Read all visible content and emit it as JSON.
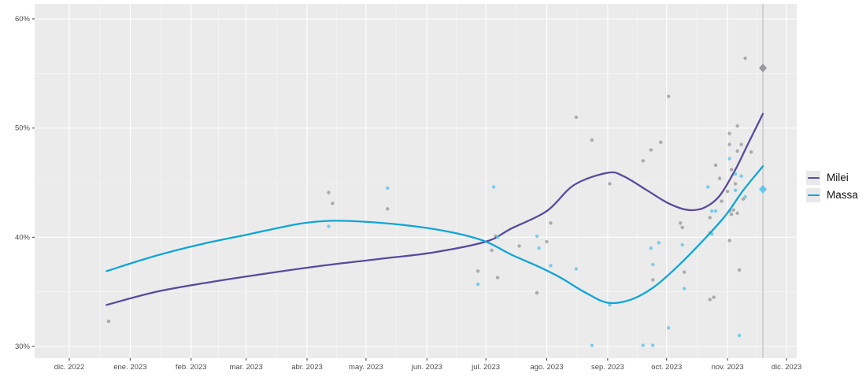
{
  "chart_data": {
    "type": "scatter",
    "title": "",
    "description": "Smoothed polling trend lines with individual poll points for Milei and Massa, with vertical line and diamond markers at the Nov 19 2023 runoff",
    "x_axis": {
      "tick_labels": [
        "dic. 2022",
        "ene. 2023",
        "feb. 2023",
        "mar. 2023",
        "abr. 2023",
        "may. 2023",
        "jun. 2023",
        "jul. 2023",
        "ago. 2023",
        "sep. 2023",
        "oct. 2023",
        "nov. 2023",
        "dic. 2023"
      ],
      "tick_dates": [
        "2022-12-01",
        "2023-01-01",
        "2023-02-01",
        "2023-03-01",
        "2023-04-01",
        "2023-05-01",
        "2023-06-01",
        "2023-07-01",
        "2023-08-01",
        "2023-09-01",
        "2023-10-01",
        "2023-11-01",
        "2023-12-01"
      ]
    },
    "y_axis": {
      "tick_labels": [
        "30%",
        "40%",
        "50%",
        "60%"
      ],
      "ticks": [
        30,
        40,
        50,
        60
      ],
      "minor_ticks": [
        35,
        45,
        55
      ],
      "range": [
        28.9,
        61.4
      ]
    },
    "x_range": [
      "2022-11-13",
      "2023-12-06"
    ],
    "election_line_date": "2023-11-19",
    "panel_bg": "#ebebeb",
    "grid_color": "#ffffff",
    "axis_text_color": "#4d4d4d",
    "tick_mark_color": "#333333",
    "election_line_color": "#bdbdbd",
    "legend_position": "right",
    "series": [
      {
        "name": "Milei",
        "line_color": "#584a9e",
        "point_color": "#9a9a9a",
        "result_color": "#8f8f96",
        "result": [
          "2023-11-19",
          55.5
        ],
        "trend": [
          [
            "2022-12-20",
            33.8
          ],
          [
            "2023-01-14",
            35.0
          ],
          [
            "2023-02-11",
            35.9
          ],
          [
            "2023-03-12",
            36.7
          ],
          [
            "2023-04-09",
            37.4
          ],
          [
            "2023-05-07",
            38.0
          ],
          [
            "2023-06-04",
            38.6
          ],
          [
            "2023-07-01",
            39.6
          ],
          [
            "2023-07-14",
            40.8
          ],
          [
            "2023-08-01",
            42.4
          ],
          [
            "2023-08-15",
            44.8
          ],
          [
            "2023-09-01",
            45.9
          ],
          [
            "2023-09-09",
            45.6
          ],
          [
            "2023-09-21",
            44.3
          ],
          [
            "2023-10-02",
            43.1
          ],
          [
            "2023-10-12",
            42.5
          ],
          [
            "2023-10-20",
            42.7
          ],
          [
            "2023-10-28",
            43.8
          ],
          [
            "2023-11-05",
            46.2
          ],
          [
            "2023-11-11",
            48.4
          ],
          [
            "2023-11-19",
            51.3
          ]
        ],
        "polls": [
          [
            "2022-12-21",
            32.3
          ],
          [
            "2023-04-12",
            44.1
          ],
          [
            "2023-04-14",
            43.1
          ],
          [
            "2023-05-12",
            42.6
          ],
          [
            "2023-06-27",
            36.9
          ],
          [
            "2023-07-04",
            38.8
          ],
          [
            "2023-07-06",
            40.1
          ],
          [
            "2023-07-07",
            36.3
          ],
          [
            "2023-07-18",
            39.2
          ],
          [
            "2023-07-27",
            34.9
          ],
          [
            "2023-08-01",
            39.6
          ],
          [
            "2023-08-03",
            41.3
          ],
          [
            "2023-08-16",
            51.0
          ],
          [
            "2023-08-24",
            48.9
          ],
          [
            "2023-09-02",
            44.9
          ],
          [
            "2023-09-19",
            47.0
          ],
          [
            "2023-09-23",
            48.0
          ],
          [
            "2023-09-24",
            36.1
          ],
          [
            "2023-09-28",
            48.7
          ],
          [
            "2023-10-02",
            52.9
          ],
          [
            "2023-10-08",
            41.3
          ],
          [
            "2023-10-09",
            40.9
          ],
          [
            "2023-10-10",
            36.8
          ],
          [
            "2023-10-23",
            40.4
          ],
          [
            "2023-10-23",
            34.3
          ],
          [
            "2023-10-23",
            41.8
          ],
          [
            "2023-10-25",
            34.5
          ],
          [
            "2023-10-26",
            46.6
          ],
          [
            "2023-10-28",
            45.4
          ],
          [
            "2023-10-29",
            43.3
          ],
          [
            "2023-11-01",
            44.2
          ],
          [
            "2023-11-02",
            49.5
          ],
          [
            "2023-11-02",
            48.5
          ],
          [
            "2023-11-02",
            42.4
          ],
          [
            "2023-11-02",
            39.7
          ],
          [
            "2023-11-03",
            46.2
          ],
          [
            "2023-11-03",
            42.1
          ],
          [
            "2023-11-04",
            42.5
          ],
          [
            "2023-11-05",
            44.9
          ],
          [
            "2023-11-06",
            50.2
          ],
          [
            "2023-11-06",
            47.9
          ],
          [
            "2023-11-06",
            42.2
          ],
          [
            "2023-11-07",
            37.0
          ],
          [
            "2023-11-08",
            48.5
          ],
          [
            "2023-11-09",
            43.5
          ],
          [
            "2023-11-10",
            56.4
          ],
          [
            "2023-11-13",
            47.8
          ]
        ]
      },
      {
        "name": "Massa",
        "line_color": "#0ea5d8",
        "point_color": "#5fc3e8",
        "result_color": "#55c3ea",
        "result": [
          "2023-11-19",
          44.4
        ],
        "trend": [
          [
            "2022-12-20",
            36.9
          ],
          [
            "2023-01-14",
            38.3
          ],
          [
            "2023-02-07",
            39.4
          ],
          [
            "2023-03-03",
            40.3
          ],
          [
            "2023-03-27",
            41.2
          ],
          [
            "2023-04-12",
            41.5
          ],
          [
            "2023-05-02",
            41.4
          ],
          [
            "2023-05-26",
            41.0
          ],
          [
            "2023-06-15",
            40.4
          ],
          [
            "2023-07-01",
            39.6
          ],
          [
            "2023-07-14",
            38.4
          ],
          [
            "2023-07-28",
            37.3
          ],
          [
            "2023-08-08",
            36.3
          ],
          [
            "2023-08-20",
            35.0
          ],
          [
            "2023-09-01",
            34.0
          ],
          [
            "2023-09-13",
            34.3
          ],
          [
            "2023-09-25",
            35.5
          ],
          [
            "2023-10-07",
            37.4
          ],
          [
            "2023-10-19",
            39.6
          ],
          [
            "2023-10-31",
            42.0
          ],
          [
            "2023-11-09",
            44.3
          ],
          [
            "2023-11-19",
            46.5
          ]
        ],
        "polls": [
          [
            "2023-04-12",
            41.0
          ],
          [
            "2023-05-12",
            44.5
          ],
          [
            "2023-06-27",
            35.7
          ],
          [
            "2023-07-05",
            44.6
          ],
          [
            "2023-07-07",
            40.0
          ],
          [
            "2023-07-27",
            40.1
          ],
          [
            "2023-07-28",
            39.0
          ],
          [
            "2023-08-03",
            37.4
          ],
          [
            "2023-08-16",
            37.1
          ],
          [
            "2023-08-24",
            30.1
          ],
          [
            "2023-09-02",
            33.8
          ],
          [
            "2023-09-19",
            30.1
          ],
          [
            "2023-09-23",
            39.0
          ],
          [
            "2023-09-24",
            37.5
          ],
          [
            "2023-09-24",
            30.1
          ],
          [
            "2023-09-27",
            39.5
          ],
          [
            "2023-10-02",
            31.7
          ],
          [
            "2023-10-09",
            39.3
          ],
          [
            "2023-10-10",
            35.3
          ],
          [
            "2023-10-22",
            44.6
          ],
          [
            "2023-10-24",
            42.4
          ],
          [
            "2023-10-24",
            40.3
          ],
          [
            "2023-10-26",
            42.4
          ],
          [
            "2023-11-02",
            47.2
          ],
          [
            "2023-11-05",
            45.8
          ],
          [
            "2023-11-05",
            44.3
          ],
          [
            "2023-11-07",
            31.0
          ],
          [
            "2023-11-08",
            45.6
          ],
          [
            "2023-11-10",
            43.7
          ]
        ]
      }
    ]
  }
}
